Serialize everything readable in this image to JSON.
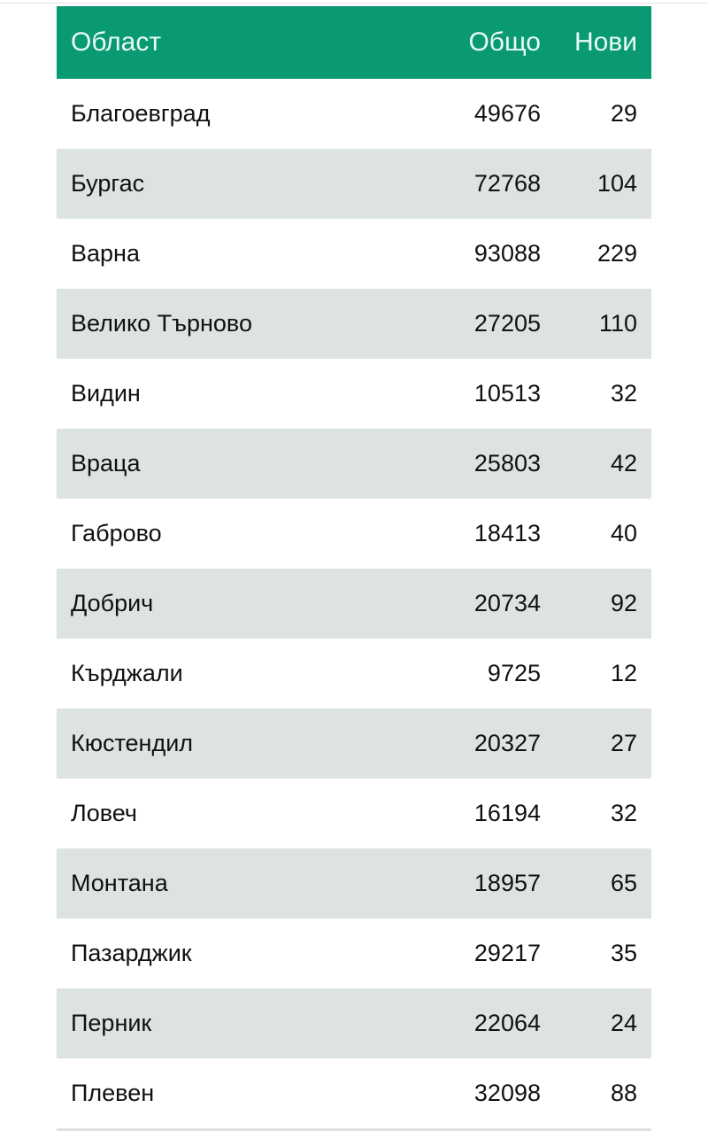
{
  "table": {
    "headers": [
      "Област",
      "Общо",
      "Нови"
    ],
    "rows": [
      [
        "Благоевград",
        "49676",
        "29"
      ],
      [
        "Бургас",
        "72768",
        "104"
      ],
      [
        "Варна",
        "93088",
        "229"
      ],
      [
        "Велико Търново",
        "27205",
        "110"
      ],
      [
        "Видин",
        "10513",
        "32"
      ],
      [
        "Враца",
        "25803",
        "42"
      ],
      [
        "Габрово",
        "18413",
        "40"
      ],
      [
        "Добрич",
        "20734",
        "92"
      ],
      [
        "Кърджали",
        "9725",
        "12"
      ],
      [
        "Кюстендил",
        "20327",
        "27"
      ],
      [
        "Ловеч",
        "16194",
        "32"
      ],
      [
        "Монтана",
        "18957",
        "65"
      ],
      [
        "Пазарджик",
        "29217",
        "35"
      ],
      [
        "Перник",
        "22064",
        "24"
      ],
      [
        "Плевен",
        "32098",
        "88"
      ]
    ]
  },
  "colors": {
    "header": "#0a9a73",
    "stripe": "#dce3e2"
  }
}
